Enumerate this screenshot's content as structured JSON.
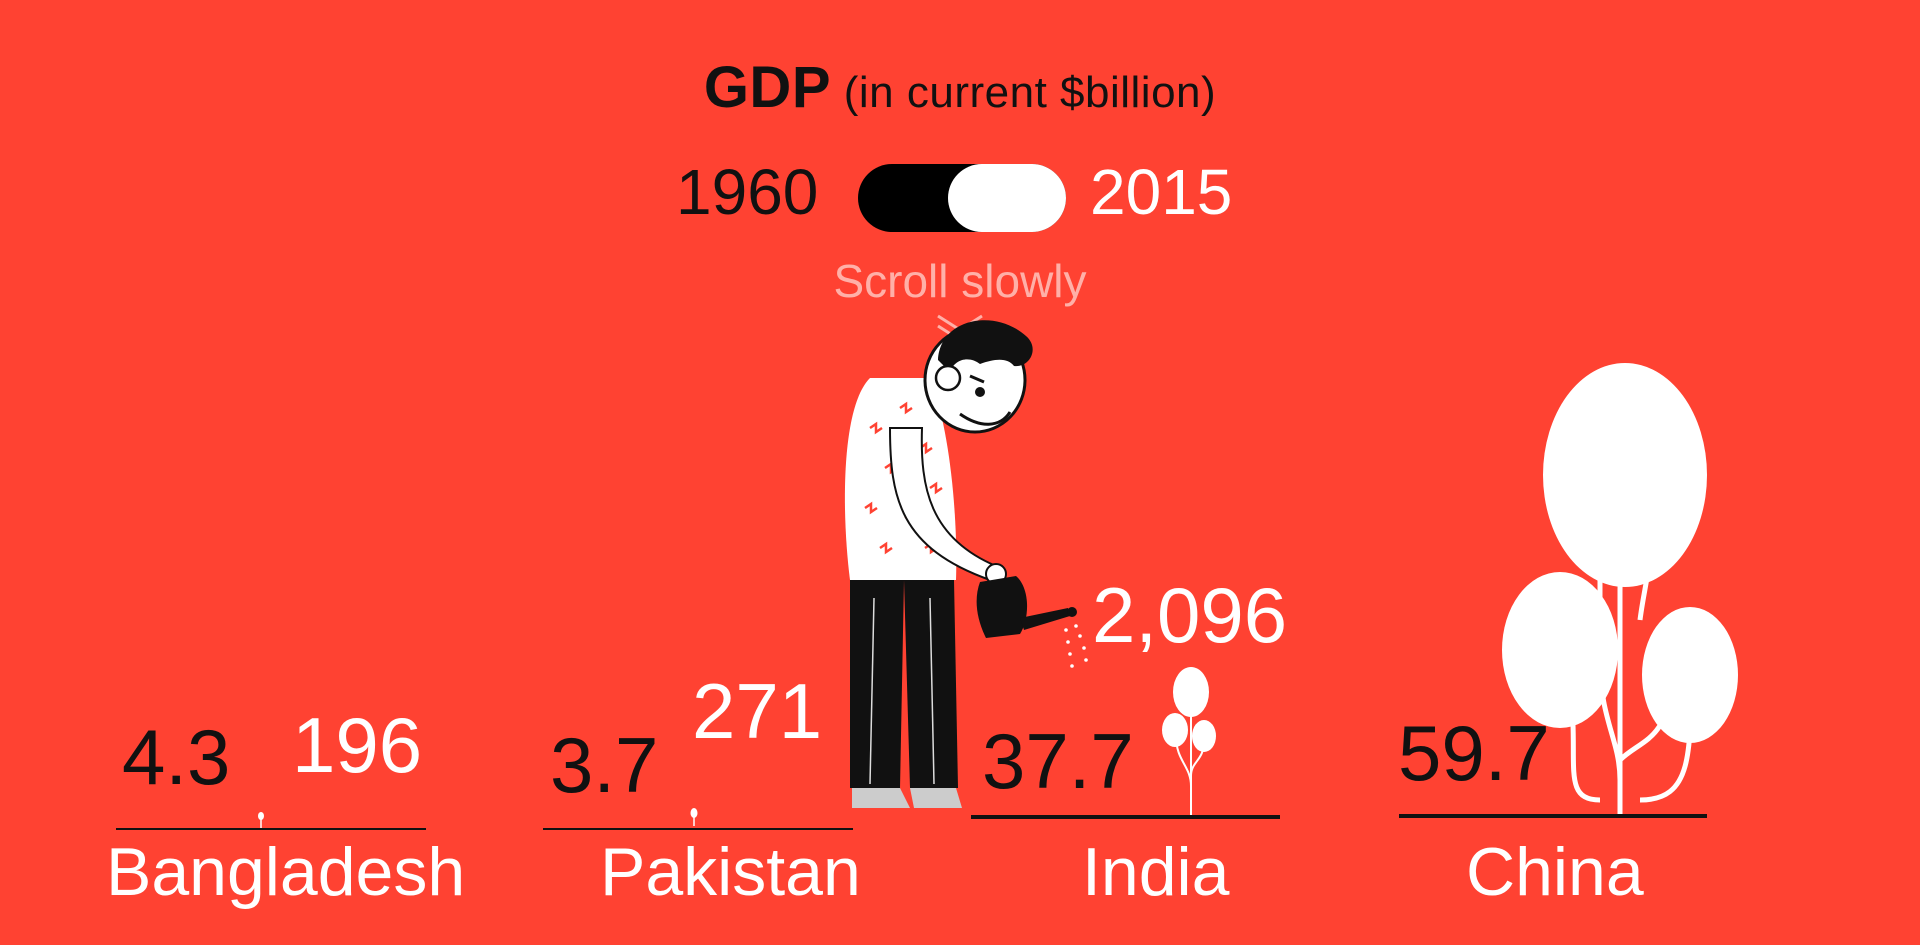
{
  "header": {
    "title_strong": "GDP",
    "title_rest": "(in current $billion)"
  },
  "toggle": {
    "year_start": "1960",
    "year_end": "2015",
    "selected": "2015"
  },
  "hint": {
    "text": "Scroll slowly",
    "icon": "chevron-double-down-icon"
  },
  "colors": {
    "background": "#ff4232",
    "dark": "#111111",
    "light": "#ffffff"
  },
  "chart_data": {
    "type": "pictorial",
    "title": "GDP (in current $billion)",
    "categories": [
      "Bangladesh",
      "Pakistan",
      "India",
      "China"
    ],
    "series": [
      {
        "name": "1960",
        "values": [
          4.3,
          3.7,
          37.7,
          59.7
        ]
      },
      {
        "name": "2015",
        "values": [
          196,
          271,
          2096,
          null
        ]
      }
    ],
    "labels": {
      "1960": [
        "4.3",
        "3.7",
        "37.7",
        "59.7"
      ],
      "2015": [
        "196",
        "271",
        "2,096",
        ""
      ]
    }
  }
}
